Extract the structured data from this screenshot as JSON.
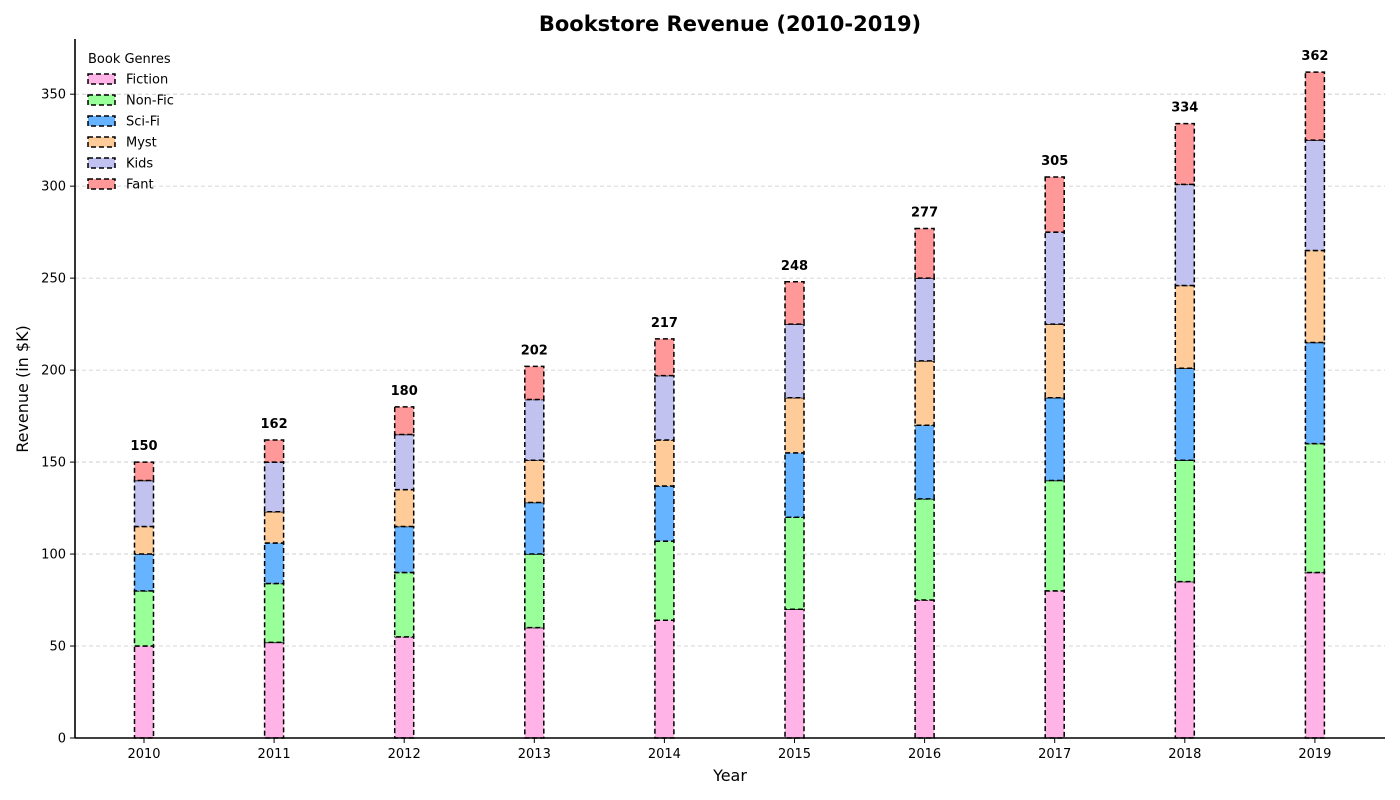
{
  "chart_data": {
    "type": "bar",
    "stacked": true,
    "title": "Bookstore Revenue (2010-2019)",
    "xlabel": "Year",
    "ylabel": "Revenue (in $K)",
    "ylim": [
      0,
      380
    ],
    "yticks": [
      0,
      50,
      100,
      150,
      200,
      250,
      300,
      350
    ],
    "grid": "horizontal dashed",
    "legend": {
      "title": "Book Genres",
      "position": "top-left"
    },
    "categories": [
      "2010",
      "2011",
      "2012",
      "2013",
      "2014",
      "2015",
      "2016",
      "2017",
      "2018",
      "2019"
    ],
    "series": [
      {
        "name": "Fiction",
        "color": "#ffb3e6",
        "values": [
          50,
          52,
          55,
          60,
          64,
          70,
          75,
          80,
          85,
          90
        ]
      },
      {
        "name": "Non-Fic",
        "color": "#99ff99",
        "values": [
          30,
          32,
          35,
          40,
          43,
          50,
          55,
          60,
          66,
          70
        ]
      },
      {
        "name": "Sci-Fi",
        "color": "#66b3ff",
        "values": [
          20,
          22,
          25,
          28,
          30,
          35,
          40,
          45,
          50,
          55
        ]
      },
      {
        "name": "Myst",
        "color": "#ffcc99",
        "values": [
          15,
          17,
          20,
          23,
          25,
          30,
          35,
          40,
          45,
          50
        ]
      },
      {
        "name": "Kids",
        "color": "#c2c2f0",
        "values": [
          25,
          27,
          30,
          33,
          35,
          40,
          45,
          50,
          55,
          60
        ]
      },
      {
        "name": "Fant",
        "color": "#ff9999",
        "values": [
          10,
          12,
          15,
          18,
          20,
          23,
          27,
          30,
          33,
          37
        ]
      }
    ],
    "totals": [
      "150",
      "162",
      "180",
      "202",
      "217",
      "248",
      "277",
      "305",
      "334",
      "362"
    ]
  }
}
